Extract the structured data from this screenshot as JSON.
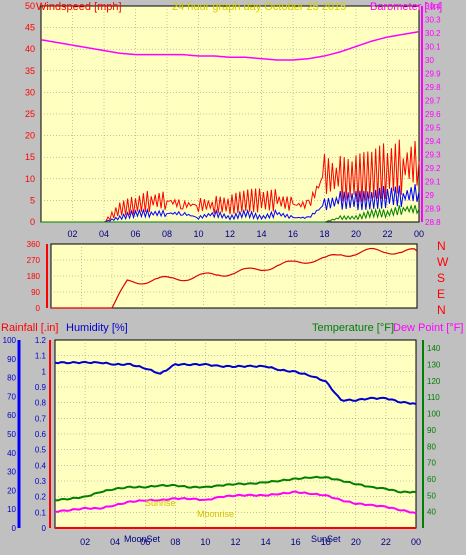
{
  "chart_data": [
    {
      "type": "line",
      "title": "24 hour graph day   October 25 2015",
      "left_axis": {
        "label": "Windspeed [mph]",
        "ylim": [
          0,
          50
        ],
        "ticks": [
          0,
          5,
          10,
          15,
          20,
          25,
          30,
          35,
          40,
          45,
          50
        ]
      },
      "right_axis": {
        "label": "Barometer [.in]",
        "ylim": [
          28.8,
          30.4
        ],
        "ticks": [
          "28.8",
          "28.9",
          "29",
          "29.1",
          "29.2",
          "29.3",
          "29.4",
          "29.5",
          "29.6",
          "29.7",
          "29.8",
          "29.9",
          "30",
          "30.1",
          "30.2",
          "30.3",
          "30.4"
        ]
      },
      "x_ticks": [
        "02",
        "04",
        "06",
        "08",
        "10",
        "12",
        "14",
        "16",
        "18",
        "20",
        "22",
        "00"
      ],
      "x": [
        0,
        1,
        2,
        3,
        4,
        5,
        6,
        7,
        8,
        9,
        10,
        11,
        12,
        13,
        14,
        15,
        16,
        17,
        18,
        19,
        20,
        21,
        22,
        23,
        24
      ],
      "series": [
        {
          "key": "barometer",
          "axis": "right",
          "color": "#ff00ff",
          "values": [
            30.15,
            30.13,
            30.11,
            30.09,
            30.07,
            30.05,
            30.04,
            30.04,
            30.04,
            30.04,
            30.03,
            30.03,
            30.02,
            30.02,
            30.01,
            30.0,
            30.0,
            30.01,
            30.03,
            30.06,
            30.1,
            30.14,
            30.17,
            30.19,
            30.21
          ]
        },
        {
          "key": "wind_gust",
          "axis": "left",
          "color": "#ff0000",
          "values": [
            0,
            0,
            0,
            0,
            0,
            3,
            4,
            5,
            5,
            4,
            4,
            4,
            4,
            5,
            5,
            5,
            4,
            4,
            11,
            10,
            10,
            11,
            12,
            13,
            14
          ]
        },
        {
          "key": "wind_speed",
          "axis": "left",
          "color": "#0000ff",
          "values": [
            0,
            0,
            0,
            0,
            0,
            1,
            2,
            2,
            2,
            2,
            1,
            2,
            1,
            2,
            1,
            2,
            1,
            1,
            4,
            5,
            5,
            5,
            6,
            6,
            7
          ]
        },
        {
          "key": "wind_avg",
          "axis": "left",
          "color": "#008000",
          "values": [
            0,
            0,
            0,
            0,
            0,
            0,
            0,
            0,
            0,
            0,
            0,
            0,
            0,
            0,
            0,
            0,
            0,
            0,
            0,
            1,
            1,
            2,
            2,
            3,
            3
          ]
        }
      ]
    },
    {
      "type": "line",
      "left_axis": {
        "ylim": [
          0,
          360
        ],
        "ticks": [
          "0",
          "90",
          "180",
          "270",
          "360"
        ]
      },
      "right_axis": {
        "labels": [
          "N",
          "W",
          "S",
          "E",
          "N"
        ]
      },
      "x_ticks": [
        "02",
        "04",
        "06",
        "08",
        "10",
        "12",
        "14",
        "16",
        "18",
        "20",
        "22",
        "00"
      ],
      "x": [
        0,
        1,
        2,
        3,
        4,
        5,
        6,
        7,
        8,
        9,
        10,
        11,
        12,
        13,
        14,
        15,
        16,
        17,
        18,
        19,
        20,
        21,
        22,
        23,
        24
      ],
      "series": [
        {
          "key": "wind_direction",
          "color": "#e00000",
          "values": [
            0,
            0,
            0,
            0,
            0,
            145,
            150,
            160,
            165,
            170,
            180,
            190,
            200,
            210,
            225,
            240,
            255,
            270,
            275,
            300,
            310,
            320,
            320,
            315,
            320
          ]
        }
      ]
    },
    {
      "type": "line",
      "labels": {
        "rainfall": "Rainfall [.in]",
        "humidity": "Humidity [%]",
        "temperature": "Temperature [°F]",
        "dew_point": "Dew Point [°F]"
      },
      "rain_axis": {
        "ylim": [
          0,
          1.2
        ],
        "ticks": [
          "0",
          "0.1",
          "0.2",
          "0.3",
          "0.4",
          "0.5",
          "0.6",
          "0.7",
          "0.8",
          "0.9",
          "1",
          "1.1",
          "1.2"
        ]
      },
      "humidity_axis": {
        "ylim": [
          0,
          100
        ],
        "ticks": [
          "0",
          "10",
          "20",
          "30",
          "40",
          "50",
          "60",
          "70",
          "80",
          "90",
          "100"
        ]
      },
      "temp_axis": {
        "ylim": [
          30,
          145
        ],
        "ticks": [
          "40",
          "50",
          "60",
          "70",
          "80",
          "90",
          "100",
          "110",
          "120",
          "130",
          "140"
        ]
      },
      "x_ticks": [
        "02",
        "04",
        "06",
        "08",
        "10",
        "12",
        "14",
        "16",
        "18",
        "20",
        "22",
        "00"
      ],
      "x": [
        0,
        1,
        2,
        3,
        4,
        5,
        6,
        7,
        8,
        9,
        10,
        11,
        12,
        13,
        14,
        15,
        16,
        17,
        18,
        19,
        20,
        21,
        22,
        23,
        24
      ],
      "annotations": [
        "MoonSet",
        "SunSet",
        "Sunrise",
        "Moonrise"
      ],
      "series": [
        {
          "key": "humidity",
          "axis": "humidity",
          "color": "#0000cc",
          "values": [
            88,
            88,
            88,
            88,
            87,
            87,
            85,
            82,
            87,
            87,
            87,
            86,
            86,
            86,
            86,
            84,
            83,
            81,
            78,
            68,
            68,
            69,
            69,
            67,
            66
          ]
        },
        {
          "key": "temperature",
          "axis": "temp",
          "color": "#008000",
          "values": [
            47,
            48,
            49,
            52,
            54,
            55,
            55,
            56,
            56,
            55,
            55,
            56,
            57,
            57,
            58,
            59,
            60,
            61,
            61,
            59,
            57,
            55,
            54,
            52,
            52
          ]
        },
        {
          "key": "dew_point",
          "axis": "temp",
          "color": "#ff00ff",
          "values": [
            40,
            41,
            42,
            42,
            44,
            46,
            47,
            47,
            48,
            48,
            47,
            49,
            50,
            50,
            50,
            51,
            52,
            51,
            50,
            47,
            45,
            44,
            43,
            41,
            39
          ]
        },
        {
          "key": "rainfall",
          "axis": "rain",
          "color": "#ff0000",
          "values": [
            0,
            0,
            0,
            0,
            0,
            0,
            0,
            0,
            0,
            0,
            0,
            0,
            0,
            0,
            0,
            0,
            0,
            0,
            0,
            0,
            0,
            0,
            0,
            0,
            0
          ]
        }
      ]
    }
  ]
}
